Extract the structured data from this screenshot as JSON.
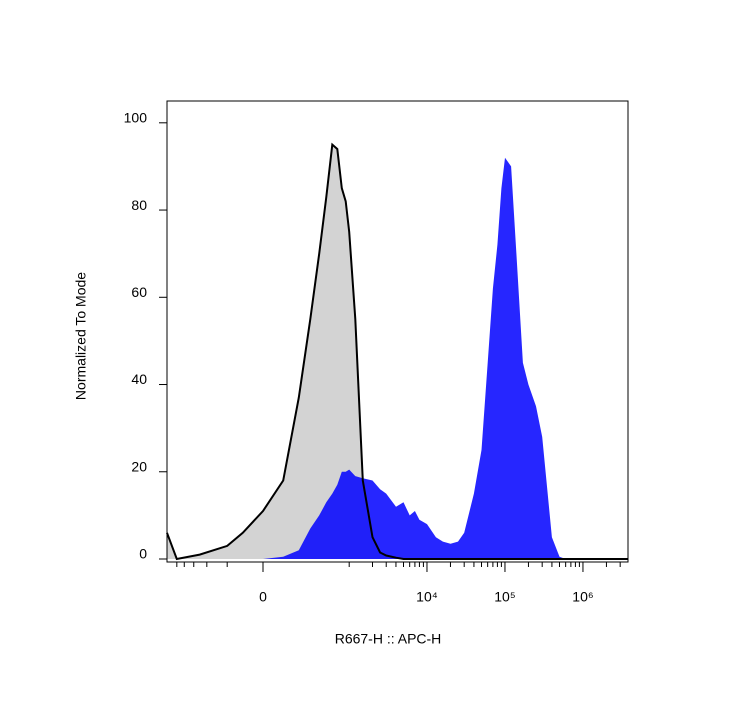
{
  "chart_data": {
    "type": "histogram-overlay",
    "x_label": "R667-H :: APC-H",
    "y_label": "Normalized To Mode",
    "xscale": "biexponential",
    "xlim": [
      -1340,
      3780000
    ],
    "xticks": [
      0,
      {
        "value": 10000,
        "label": "10⁴"
      },
      {
        "value": 100000,
        "label": "10⁵"
      },
      {
        "value": 1000000,
        "label": "10⁶"
      }
    ],
    "xminorticks": [
      -1000,
      -800,
      -600,
      -400,
      -200,
      1000,
      2000,
      3000,
      4000,
      5000,
      6000,
      7000,
      8000,
      9000,
      20000,
      30000,
      40000,
      50000,
      60000,
      70000,
      80000,
      90000,
      200000,
      300000,
      400000,
      500000,
      600000,
      700000,
      800000,
      900000,
      2000000,
      3000000
    ],
    "ylim": [
      0,
      105
    ],
    "yticks": [
      0,
      20,
      40,
      60,
      80,
      100
    ],
    "x": [
      -1340,
      -1000,
      -500,
      -200,
      -100,
      0,
      100,
      200,
      300,
      400,
      500,
      600,
      700,
      800,
      900,
      1000,
      1200,
      1500,
      2000,
      2500,
      3000,
      4000,
      5000,
      6000,
      7000,
      8000,
      10000,
      13000,
      16000,
      20000,
      25000,
      30000,
      40000,
      50000,
      60000,
      70000,
      80000,
      90000,
      100000,
      120000,
      140000,
      170000,
      200000,
      250000,
      300000,
      400000,
      500000,
      600000,
      800000,
      1000000,
      2000000,
      3780000
    ],
    "series": [
      {
        "color": "#d3d3d3",
        "outline": "#000000",
        "values": [
          6,
          0,
          1,
          3,
          6,
          11,
          18,
          37,
          55,
          70,
          83,
          95,
          94,
          85,
          82,
          75,
          55,
          18,
          5,
          1.5,
          0.8,
          0.3,
          0,
          0,
          0,
          0,
          0,
          0,
          0,
          0,
          0,
          0,
          0,
          0,
          0,
          0,
          0,
          0,
          0,
          0,
          0,
          0,
          0,
          0,
          0,
          0,
          0,
          0,
          0,
          0,
          0,
          0
        ]
      },
      {
        "color": "#0000ff",
        "values": [
          0,
          0,
          0,
          0,
          0,
          0,
          0.5,
          2,
          7,
          10,
          13,
          15,
          17,
          20,
          20,
          20.5,
          19,
          18.5,
          18,
          16,
          15,
          12,
          13,
          10,
          11,
          9,
          8,
          5,
          4,
          3.5,
          4,
          6,
          15,
          25,
          45,
          62,
          72,
          85,
          92,
          90,
          70,
          45,
          40,
          35,
          28,
          5,
          0.5,
          0,
          0,
          0,
          0,
          0
        ]
      }
    ]
  }
}
